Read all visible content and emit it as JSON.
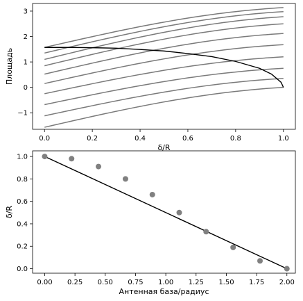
{
  "chart_data": [
    {
      "type": "line",
      "xlabel": "δ/R",
      "ylabel": "Площадь",
      "xlim": [
        -0.05,
        1.05
      ],
      "ylim": [
        -1.65,
        3.3
      ],
      "xticks": [
        "0.0",
        "0.2",
        "0.4",
        "0.6",
        "0.8",
        "1.0"
      ],
      "xtick_values": [
        0.0,
        0.2,
        0.4,
        0.6,
        0.8,
        1.0
      ],
      "yticks": [
        "−1",
        "0",
        "1",
        "2",
        "3"
      ],
      "ytick_values": [
        -1,
        0,
        1,
        2,
        3
      ],
      "grid": false,
      "family": {
        "x": [
          0.0,
          0.1,
          0.2,
          0.3,
          0.4,
          0.5,
          0.6,
          0.7,
          0.8,
          0.9,
          1.0
        ],
        "start_values": [
          1.57,
          1.35,
          1.1,
          0.85,
          0.52,
          0.15,
          -0.25,
          -0.68,
          -1.12,
          -1.57
        ],
        "end_values": [
          3.14,
          2.98,
          2.78,
          2.5,
          2.12,
          1.68,
          1.2,
          0.75,
          0.35,
          0.0
        ],
        "color": "#7a7a7a"
      },
      "highlight": {
        "x": [
          0.0,
          0.1,
          0.2,
          0.3,
          0.4,
          0.5,
          0.6,
          0.7,
          0.8,
          0.9,
          0.95,
          0.99,
          1.0
        ],
        "y": [
          1.57,
          1.57,
          1.56,
          1.54,
          1.49,
          1.43,
          1.33,
          1.21,
          1.02,
          0.75,
          0.52,
          0.2,
          0.0
        ],
        "color": "#000000"
      }
    },
    {
      "type": "scatter",
      "xlabel": "Антенная база/радиус",
      "ylabel": "δ/R",
      "xlim": [
        -0.1,
        2.07
      ],
      "ylim": [
        -0.04,
        1.05
      ],
      "xticks": [
        "0.00",
        "0.25",
        "0.50",
        "0.75",
        "1.00",
        "1.25",
        "1.50",
        "1.75",
        "2.00"
      ],
      "xtick_values": [
        0.0,
        0.25,
        0.5,
        0.75,
        1.0,
        1.25,
        1.5,
        1.75,
        2.0
      ],
      "yticks": [
        "0.0",
        "0.2",
        "0.4",
        "0.6",
        "0.8",
        "1.0"
      ],
      "ytick_values": [
        0.0,
        0.2,
        0.4,
        0.6,
        0.8,
        1.0
      ],
      "grid": false,
      "points": {
        "x": [
          0.0,
          0.222,
          0.444,
          0.667,
          0.889,
          1.111,
          1.333,
          1.556,
          1.778,
          2.0
        ],
        "y": [
          1.0,
          0.98,
          0.91,
          0.8,
          0.66,
          0.5,
          0.33,
          0.19,
          0.07,
          0.0
        ],
        "color": "#808080"
      },
      "fit_line": {
        "x": [
          0.0,
          2.0
        ],
        "y": [
          1.0,
          0.0
        ],
        "color": "#000000"
      }
    }
  ]
}
